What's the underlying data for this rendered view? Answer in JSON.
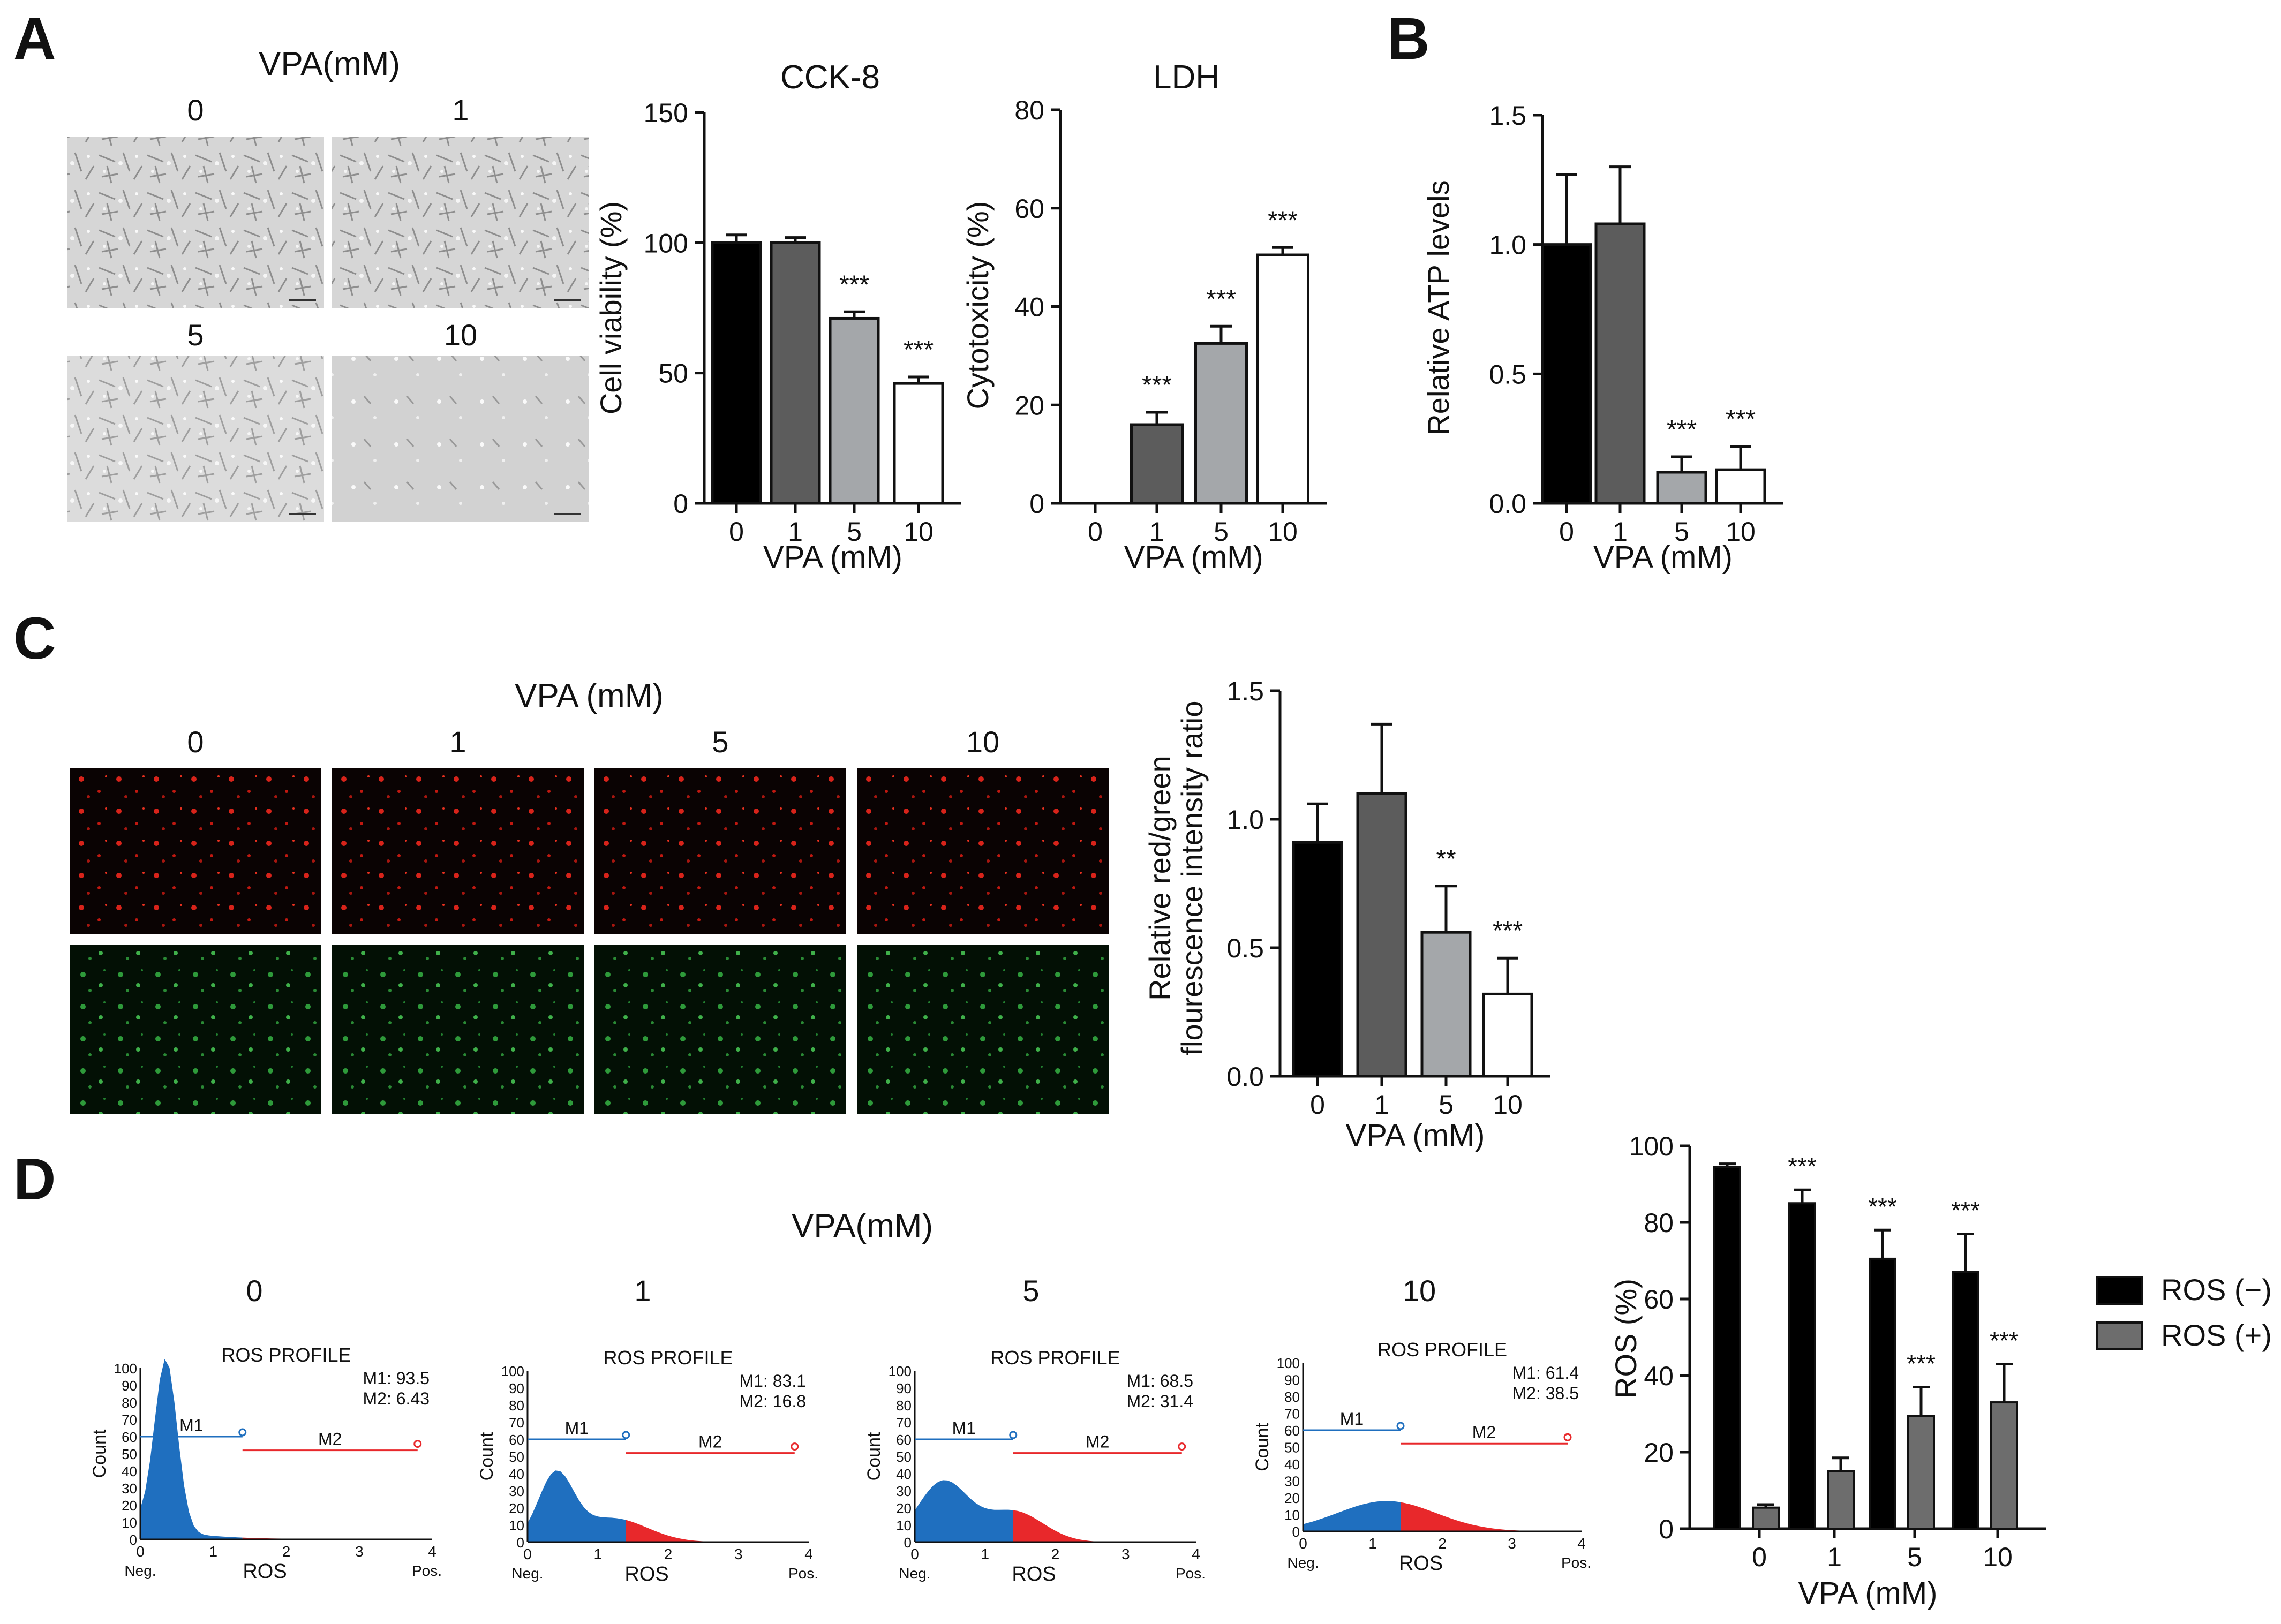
{
  "colors": {
    "c0": "#000000",
    "c1": "#5c5c5c",
    "c5": "#a4a7aa",
    "c10": "#ffffff",
    "rosneg": "#000000",
    "rospos": "#6d6d6d",
    "blue": "#1f6fbf",
    "red": "#e8282b"
  },
  "panelA": {
    "letter": "A",
    "micrograph": {
      "title": "VPA(mM)",
      "labels": [
        "0",
        "1",
        "5",
        "10"
      ]
    },
    "cck8": {
      "title": "CCK-8",
      "ylabel": "Cell viability  (%)",
      "xlabel": "VPA (mM)"
    },
    "ldh": {
      "title": "LDH",
      "ylabel": "Cytotoxicity (%)",
      "xlabel": "VPA (mM)"
    }
  },
  "panelB": {
    "letter": "B",
    "ylabel": "Relative ATP levels",
    "xlabel": "VPA (mM)"
  },
  "panelC": {
    "letter": "C",
    "title": "VPA (mM)",
    "labels": [
      "0",
      "1",
      "5",
      "10"
    ],
    "ylabel1": "Relative red/green",
    "ylabel2": "flourescence intensity ratio",
    "xlabel": "VPA (mM)"
  },
  "panelD": {
    "letter": "D",
    "title": "VPA(mM)",
    "labels": [
      "0",
      "1",
      "5",
      "10"
    ],
    "flow": [
      {
        "title": "ROS PROFILE",
        "m1": "M1: 93.5",
        "m2": "M2: 6.43",
        "ylabel": "Count",
        "xlabel": "ROS",
        "neg": "Neg.",
        "pos": "Pos.",
        "yticks": [
          "100",
          "90",
          "80",
          "70",
          "60",
          "50",
          "40",
          "30",
          "20",
          "10",
          "0"
        ],
        "xticks": [
          "0",
          "1",
          "2",
          "3",
          "4"
        ],
        "gate1": "M1",
        "gate2": "M2"
      },
      {
        "title": "ROS PROFILE",
        "m1": "M1: 83.1",
        "m2": "M2: 16.8",
        "ylabel": "Count",
        "xlabel": "ROS",
        "neg": "Neg.",
        "pos": "Pos.",
        "yticks": [
          "100",
          "90",
          "80",
          "70",
          "60",
          "50",
          "40",
          "30",
          "20",
          "10",
          "0"
        ],
        "xticks": [
          "0",
          "1",
          "2",
          "3",
          "4"
        ],
        "gate1": "M1",
        "gate2": "M2"
      },
      {
        "title": "ROS PROFILE",
        "m1": "M1: 68.5",
        "m2": "M2: 31.4",
        "ylabel": "Count",
        "xlabel": "ROS",
        "neg": "Neg.",
        "pos": "Pos.",
        "yticks": [
          "100",
          "90",
          "80",
          "70",
          "60",
          "50",
          "40",
          "30",
          "20",
          "10",
          "0"
        ],
        "xticks": [
          "0",
          "1",
          "2",
          "3",
          "4"
        ],
        "gate1": "M1",
        "gate2": "M2"
      },
      {
        "title": "ROS PROFILE",
        "m1": "M1: 61.4",
        "m2": "M2: 38.5",
        "ylabel": "Count",
        "xlabel": "ROS",
        "neg": "Neg.",
        "pos": "Pos.",
        "yticks": [
          "100",
          "90",
          "80",
          "70",
          "60",
          "50",
          "40",
          "30",
          "20",
          "10",
          "0"
        ],
        "xticks": [
          "0",
          "1",
          "2",
          "3",
          "4"
        ],
        "gate1": "M1",
        "gate2": "M2"
      }
    ]
  },
  "chart_data": [
    {
      "id": "cck8",
      "type": "bar",
      "title": "CCK-8",
      "xlabel": "VPA (mM)",
      "ylabel": "Cell viability  (%)",
      "categories": [
        "0",
        "1",
        "5",
        "10"
      ],
      "values": [
        100,
        100,
        71,
        46
      ],
      "errors": [
        3,
        2,
        2.5,
        2.5
      ],
      "sig": [
        "",
        "",
        "***",
        "***"
      ],
      "ylim": [
        0,
        150
      ],
      "yticks": [
        0,
        50,
        100,
        150
      ]
    },
    {
      "id": "ldh",
      "type": "bar",
      "title": "LDH",
      "xlabel": "VPA (mM)",
      "ylabel": "Cytotoxicity (%)",
      "categories": [
        "0",
        "1",
        "5",
        "10"
      ],
      "values": [
        0,
        16,
        32.5,
        50.5
      ],
      "errors": [
        0,
        2.5,
        3.5,
        1.5
      ],
      "sig": [
        "",
        "***",
        "***",
        "***"
      ],
      "ylim": [
        0,
        80
      ],
      "yticks": [
        0,
        20,
        40,
        60,
        80
      ]
    },
    {
      "id": "atp",
      "type": "bar",
      "title": "",
      "xlabel": "VPA (mM)",
      "ylabel": "Relative ATP levels",
      "categories": [
        "0",
        "1",
        "5",
        "10"
      ],
      "values": [
        1.0,
        1.08,
        0.12,
        0.13
      ],
      "errors": [
        0.27,
        0.22,
        0.06,
        0.09
      ],
      "sig": [
        "",
        "",
        "***",
        "***"
      ],
      "ylim": [
        0,
        1.5
      ],
      "yticks": [
        0.0,
        0.5,
        1.0,
        1.5
      ]
    },
    {
      "id": "jc1",
      "type": "bar",
      "title": "",
      "xlabel": "VPA (mM)",
      "ylabel": "Relative red/green flourescence intensity ratio",
      "categories": [
        "0",
        "1",
        "5",
        "10"
      ],
      "values": [
        0.91,
        1.1,
        0.56,
        0.32
      ],
      "errors": [
        0.15,
        0.27,
        0.18,
        0.14
      ],
      "sig": [
        "",
        "",
        "**",
        "***"
      ],
      "ylim": [
        0,
        1.5
      ],
      "yticks": [
        0.0,
        0.5,
        1.0,
        1.5
      ]
    },
    {
      "id": "ros",
      "type": "bar",
      "title": "",
      "xlabel": "VPA (mM)",
      "ylabel": "ROS (%)",
      "categories": [
        "0",
        "1",
        "5",
        "10"
      ],
      "series": [
        {
          "name": "ROS (−)",
          "values": [
            94.5,
            85,
            70.5,
            67
          ],
          "errors": [
            0.8,
            3.5,
            7.5,
            10
          ],
          "sig": [
            "",
            "***",
            "***",
            "***"
          ]
        },
        {
          "name": "ROS (+)",
          "values": [
            5.5,
            15,
            29.5,
            33
          ],
          "errors": [
            0.8,
            3.5,
            7.5,
            10
          ],
          "sig": [
            "",
            "",
            "***",
            "***"
          ]
        }
      ],
      "ylim": [
        0,
        100
      ],
      "yticks": [
        0,
        20,
        40,
        60,
        80,
        100
      ]
    }
  ]
}
